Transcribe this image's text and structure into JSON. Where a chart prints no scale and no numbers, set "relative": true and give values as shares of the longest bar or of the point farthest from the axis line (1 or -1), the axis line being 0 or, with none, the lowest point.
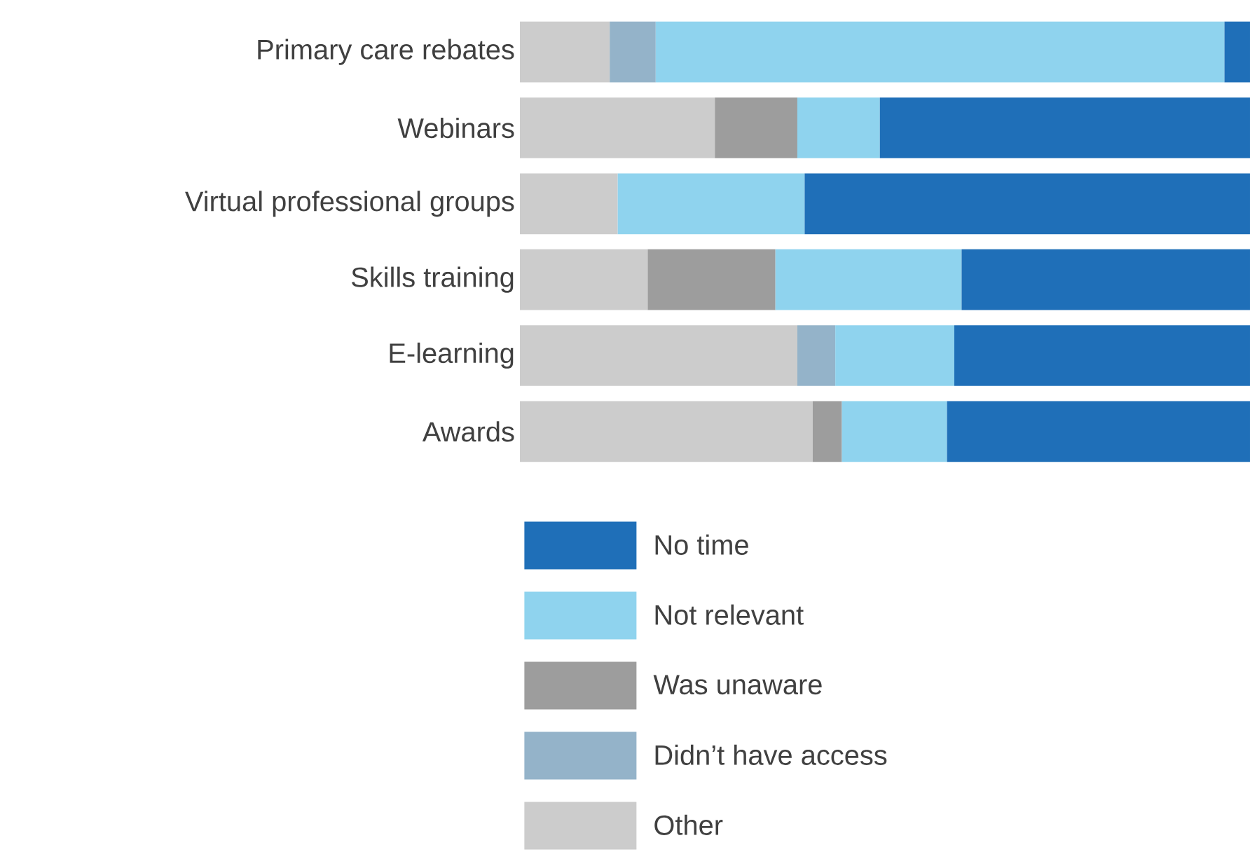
{
  "chart_data": {
    "type": "bar",
    "orientation": "horizontal",
    "stacked": true,
    "relative": true,
    "legend": "bottom",
    "categories": [
      "Primary care rebates",
      "Webinars",
      "Virtual professional groups",
      "Skills training",
      "E-learning",
      "Awards"
    ],
    "series": [
      {
        "name": "Other",
        "color": "#cccccc",
        "values": [
          0.123,
          0.267,
          0.134,
          0.175,
          0.38,
          0.401
        ]
      },
      {
        "name": "Didn’t have access",
        "color": "#94b3c9",
        "values": [
          0.063,
          null,
          null,
          null,
          0.052,
          null
        ]
      },
      {
        "name": "Was unaware",
        "color": "#9d9d9d",
        "values": [
          null,
          0.113,
          null,
          0.175,
          null,
          0.04
        ]
      },
      {
        "name": "Not relevant",
        "color": "#8fd3ee",
        "values": [
          0.779,
          0.113,
          0.256,
          0.255,
          0.163,
          0.144
        ]
      },
      {
        "name": "No time",
        "color": "#1f6fb8",
        "values": [
          0.035,
          0.507,
          0.61,
          0.395,
          0.405,
          0.415
        ]
      }
    ]
  }
}
